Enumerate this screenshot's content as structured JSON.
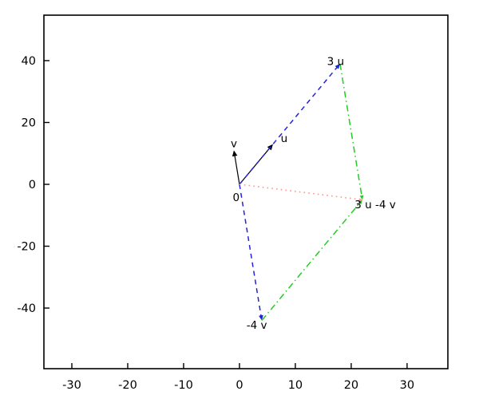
{
  "figure": {
    "background": "#ffffff",
    "frame_color": "#000000"
  },
  "chart_data": {
    "type": "scatter",
    "subtype": "vector-field",
    "title": "",
    "xlabel": "",
    "ylabel": "",
    "grid": false,
    "legend": null,
    "xlim": [
      -35.0,
      37.3
    ],
    "ylim": [
      -59.6,
      54.7
    ],
    "xticks": [
      -30,
      -20,
      -10,
      0,
      10,
      20,
      30
    ],
    "yticks": [
      -40,
      -20,
      0,
      20,
      40
    ],
    "colors": {
      "axis": "#000000",
      "vector_uv": "#000000",
      "vector_scaled": "#2222dd",
      "vector_sides": "#22cc22",
      "vector_diagonal": "#ff9999"
    },
    "vectors": [
      {
        "name": "u",
        "from": [
          0,
          0
        ],
        "to": [
          6,
          13
        ],
        "style": "solid",
        "color": "#000000",
        "arrow_size": 8
      },
      {
        "name": "v",
        "from": [
          0,
          0
        ],
        "to": [
          -1,
          11
        ],
        "style": "solid",
        "color": "#000000",
        "arrow_size": 8
      },
      {
        "name": "3u",
        "from": [
          0,
          0
        ],
        "to": [
          18,
          39
        ],
        "style": "dashed",
        "color": "#2222dd",
        "arrow_size": 7
      },
      {
        "name": "minus-4v",
        "from": [
          0,
          0
        ],
        "to": [
          4,
          -44
        ],
        "style": "dashed",
        "color": "#2222dd",
        "arrow_size": 7
      },
      {
        "name": "side-from-3u",
        "from": [
          18,
          39
        ],
        "to": [
          22,
          -5
        ],
        "style": "dashdot",
        "color": "#22cc22",
        "arrow_size": 6
      },
      {
        "name": "side-from-minus-4v",
        "from": [
          4,
          -44
        ],
        "to": [
          22,
          -5
        ],
        "style": "dashdot",
        "color": "#22cc22",
        "arrow_size": 6
      },
      {
        "name": "diagonal-3u-4v",
        "from": [
          0,
          0
        ],
        "to": [
          22,
          -5
        ],
        "style": "dotted",
        "color": "#ff9999",
        "arrow_size": 4
      }
    ],
    "point_labels": [
      {
        "id": "origin",
        "text": "0",
        "x": -0.6,
        "y": -4.2
      },
      {
        "id": "v",
        "text": "v",
        "x": -1.0,
        "y": 13.2
      },
      {
        "id": "u",
        "text": "u",
        "x": 8.0,
        "y": 14.9
      },
      {
        "id": "3u",
        "text": "3 u",
        "x": 17.2,
        "y": 39.7
      },
      {
        "id": "minus-4v",
        "text": "-4 v",
        "x": 3.1,
        "y": -45.6
      },
      {
        "id": "3u-minus-4v",
        "text": "3 u -4 v",
        "x": 24.3,
        "y": -6.6
      }
    ]
  }
}
